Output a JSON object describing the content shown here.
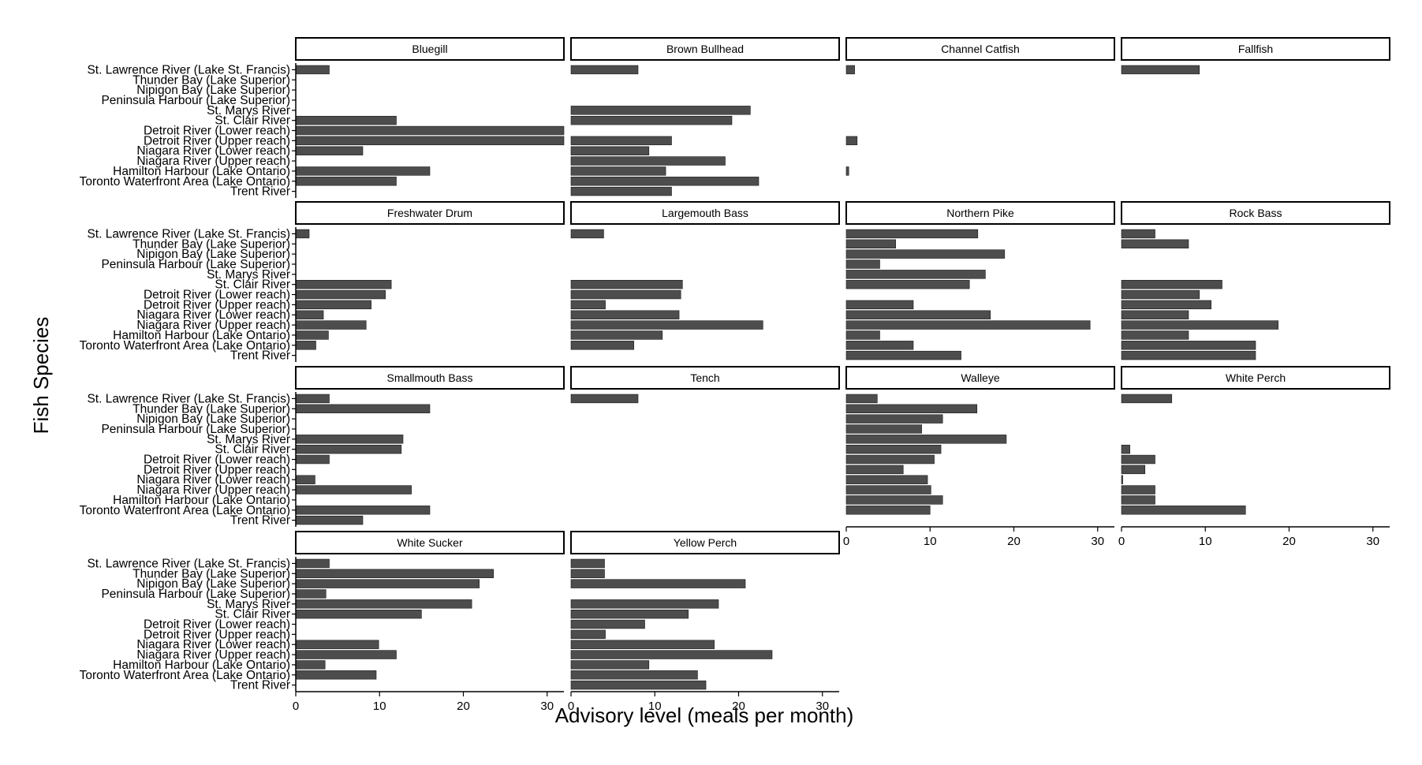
{
  "chart_data": {
    "type": "bar",
    "orientation": "horizontal",
    "xlabel": "Advisory level (meals per month)",
    "ylabel": "Fish Species",
    "xlim": [
      0,
      32
    ],
    "xticks": [
      0,
      10,
      20,
      30
    ],
    "bar_color": "#4d4d4d",
    "categories": [
      "St. Lawrence River (Lake St. Francis)",
      "Thunder Bay (Lake Superior)",
      "Nipigon Bay (Lake Superior)",
      "Peninsula Harbour (Lake Superior)",
      "St. Marys River",
      "St. Clair River",
      "Detroit River (Lower reach)",
      "Detroit River (Upper reach)",
      "Niagara River (Lower reach)",
      "Niagara River (Upper reach)",
      "Hamilton Harbour (Lake Ontario)",
      "Toronto Waterfront Area (Lake Ontario)",
      "Trent River"
    ],
    "panels": [
      {
        "name": "Bluegill",
        "values": [
          4,
          null,
          null,
          null,
          null,
          12,
          32,
          32,
          8,
          null,
          16,
          12,
          null
        ]
      },
      {
        "name": "Brown Bullhead",
        "values": [
          8,
          null,
          null,
          null,
          21.4,
          19.2,
          null,
          12,
          9.3,
          18.4,
          11.3,
          22.4,
          12
        ]
      },
      {
        "name": "Channel Catfish",
        "values": [
          1,
          null,
          null,
          null,
          null,
          null,
          null,
          1.3,
          null,
          null,
          0.3,
          null,
          null
        ]
      },
      {
        "name": "Fallfish",
        "values": [
          9.3,
          null,
          null,
          null,
          null,
          null,
          null,
          null,
          null,
          null,
          null,
          null,
          null
        ]
      },
      {
        "name": "Freshwater Drum",
        "values": [
          1.6,
          null,
          null,
          null,
          null,
          11.4,
          10.7,
          9,
          3.3,
          8.4,
          3.9,
          2.4,
          null
        ]
      },
      {
        "name": "Largemouth Bass",
        "values": [
          3.9,
          null,
          null,
          null,
          null,
          13.3,
          13.1,
          4.1,
          12.9,
          22.9,
          10.9,
          7.5,
          null
        ]
      },
      {
        "name": "Northern Pike",
        "values": [
          15.7,
          5.9,
          18.9,
          4,
          16.6,
          14.7,
          null,
          8,
          17.2,
          29.1,
          4,
          8,
          13.7
        ]
      },
      {
        "name": "Rock Bass",
        "values": [
          4,
          8,
          null,
          null,
          null,
          12,
          9.3,
          10.7,
          8,
          18.7,
          8,
          16,
          16
        ]
      },
      {
        "name": "Smallmouth Bass",
        "values": [
          4,
          16,
          null,
          null,
          12.8,
          12.6,
          4,
          null,
          2.3,
          13.8,
          null,
          16,
          8
        ]
      },
      {
        "name": "Tench",
        "values": [
          8,
          null,
          null,
          null,
          null,
          null,
          null,
          null,
          null,
          null,
          null,
          null,
          null
        ]
      },
      {
        "name": "Walleye",
        "values": [
          3.7,
          15.6,
          11.5,
          9,
          19.1,
          11.3,
          10.5,
          6.8,
          9.7,
          10.1,
          11.5,
          10,
          null
        ]
      },
      {
        "name": "White Perch",
        "values": [
          6,
          null,
          null,
          null,
          null,
          1,
          4,
          2.8,
          0.15,
          4,
          4,
          14.8,
          null
        ]
      },
      {
        "name": "White Sucker",
        "values": [
          4,
          23.6,
          21.9,
          3.6,
          21,
          15,
          null,
          null,
          9.9,
          12,
          3.5,
          9.6,
          null
        ]
      },
      {
        "name": "Yellow Perch",
        "values": [
          4,
          4,
          20.8,
          null,
          17.6,
          14,
          8.8,
          4.1,
          17.1,
          24,
          9.3,
          15.1,
          16.1
        ]
      }
    ]
  }
}
